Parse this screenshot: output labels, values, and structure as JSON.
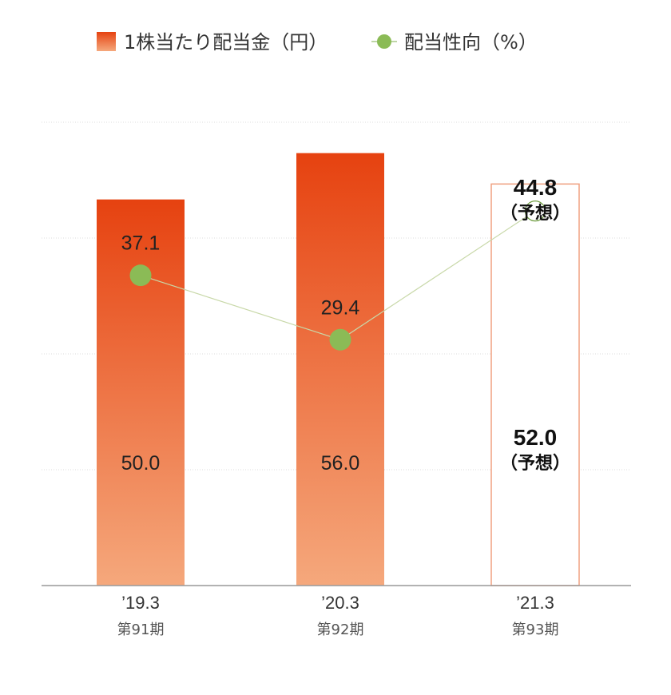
{
  "legend": {
    "bar_label": "1株当たり配当金（円）",
    "line_label": "配当性向（%）"
  },
  "chart_data": {
    "type": "bar",
    "categories": [
      "’19.3",
      "’20.3",
      "’21.3"
    ],
    "category_sublabels": [
      "第91期",
      "第92期",
      "第93期"
    ],
    "series": [
      {
        "name": "1株当たり配当金（円）",
        "type": "bar",
        "values": [
          50.0,
          56.0,
          52.0
        ],
        "labels": [
          "50.0",
          "56.0",
          "52.0"
        ],
        "forecast": [
          false,
          false,
          true
        ]
      },
      {
        "name": "配当性向（%）",
        "type": "line",
        "values": [
          37.1,
          29.4,
          44.8
        ],
        "labels": [
          "37.1",
          "29.4",
          "44.8"
        ],
        "forecast": [
          false,
          false,
          true
        ]
      }
    ],
    "forecast_note": "（予想）",
    "ylim_bar": [
      0,
      60
    ],
    "ylim_line": [
      0,
      60
    ],
    "grid": true,
    "legend_position": "top",
    "colors": {
      "bar_top": "#e64210",
      "bar_bottom": "#f5a87c",
      "forecast_bar_border": "#f0a080",
      "line": "#c8d8a8",
      "marker": "#8bbb56",
      "forecast_marker_border": "#6a9a3a",
      "grid": "#dddddd",
      "baseline": "#999999"
    }
  }
}
